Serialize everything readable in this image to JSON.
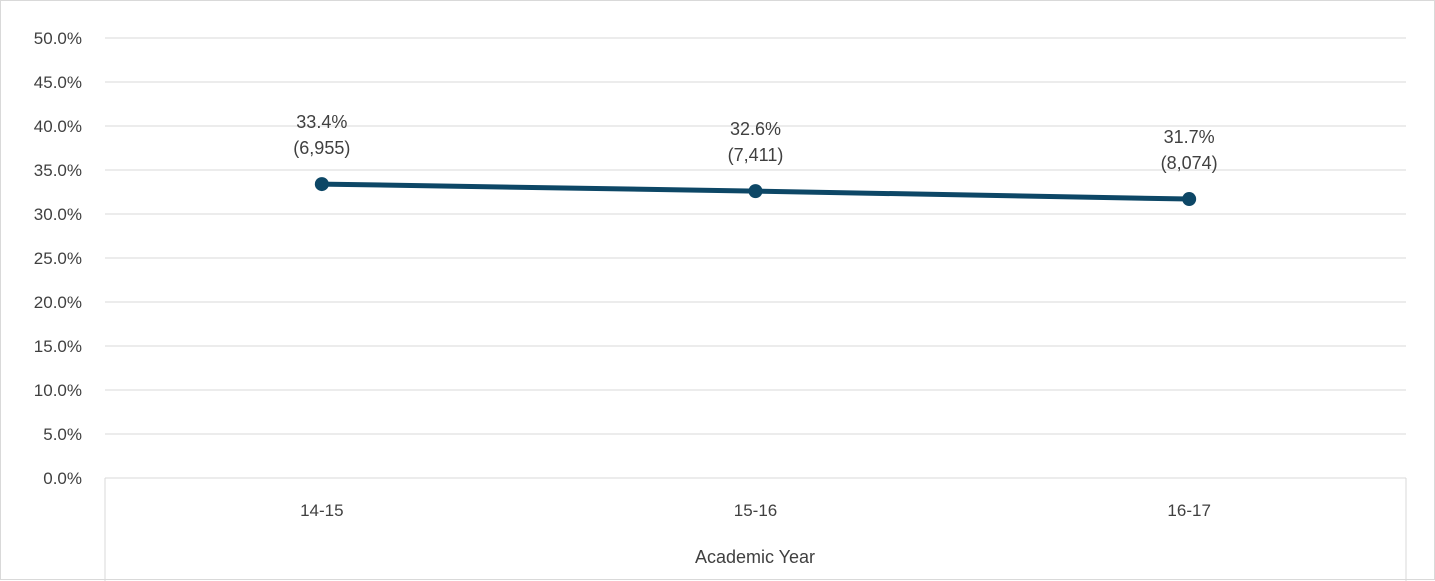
{
  "chart_data": {
    "type": "line",
    "title": "",
    "xlabel": "Academic Year",
    "ylabel": "",
    "categories": [
      "14-15",
      "15-16",
      "16-17"
    ],
    "series": [
      {
        "values": [
          33.4,
          32.6,
          31.7
        ],
        "counts": [
          "(6,955)",
          "(7,411)",
          "(8,074)"
        ],
        "labels": [
          "33.4%",
          "32.6%",
          "31.7%"
        ],
        "color": "#0d4766"
      }
    ],
    "ylim": [
      0,
      50
    ],
    "ystep": 5,
    "ytick_labels": [
      "0.0%",
      "5.0%",
      "10.0%",
      "15.0%",
      "20.0%",
      "25.0%",
      "30.0%",
      "35.0%",
      "40.0%",
      "45.0%",
      "50.0%"
    ],
    "grid": true,
    "legend": "none"
  }
}
